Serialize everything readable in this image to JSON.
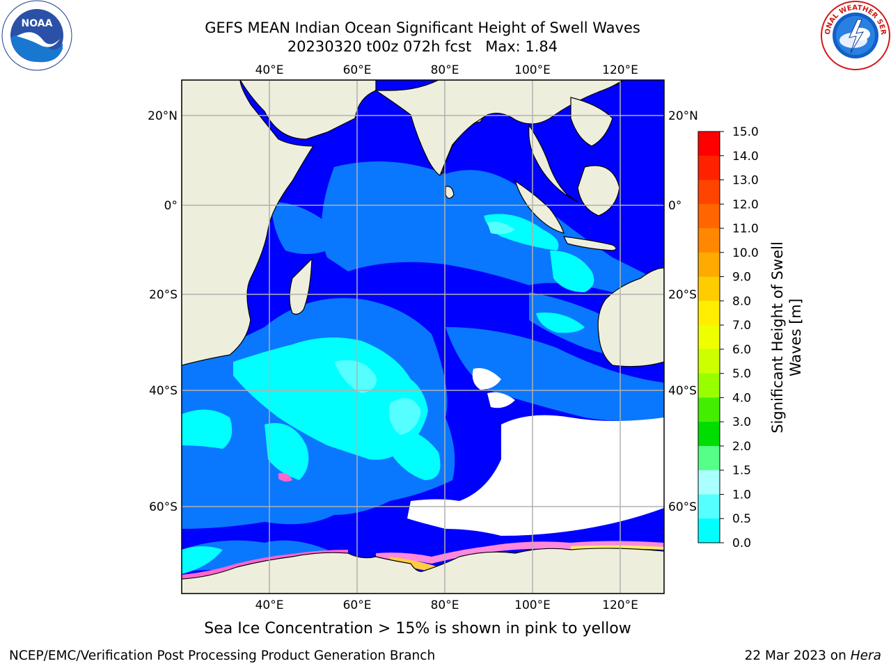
{
  "header": {
    "title_line1": "GEFS MEAN Indian Ocean Significant Height of Swell Waves",
    "title_line2": "20230320 t00z 072h fcst   Max: 1.84"
  },
  "logos": {
    "left": "NOAA",
    "right": "NATIONAL WEATHER SERVICE"
  },
  "map": {
    "lon_labels": [
      "40°E",
      "60°E",
      "80°E",
      "100°E",
      "120°E"
    ],
    "lat_labels_left": [
      "20°N",
      "0°",
      "20°S",
      "40°S",
      "60°S"
    ],
    "lat_labels_right": [
      "20°N",
      "0°",
      "20°S",
      "40°S",
      "60°S"
    ],
    "colors": {
      "land": "#eeeedc",
      "ocean_deep": "#0000ff",
      "ocean_mid": "#0a77ff",
      "ocean_light": "#00ffff",
      "ocean_pale": "#55ffff",
      "ice": "#ffffff",
      "grid": "#b0b0b0"
    }
  },
  "colorbar": {
    "label_line1": "Significant Height of Swell",
    "label_line2": "Waves [m]",
    "ticks": [
      "15.0",
      "14.0",
      "13.0",
      "12.0",
      "11.0",
      "10.0",
      "9.0",
      "8.0",
      "7.0",
      "6.0",
      "5.0",
      "4.0",
      "3.0",
      "2.0",
      "1.5",
      "1.0",
      "0.5",
      "0.0"
    ],
    "colors_top_to_bottom": [
      "#ff0000",
      "#ff2200",
      "#ff4400",
      "#ff6600",
      "#ff8800",
      "#ffaa00",
      "#ffcc00",
      "#ffee00",
      "#eeff00",
      "#ccff00",
      "#99ff00",
      "#44ee00",
      "#00dd00",
      "#55ff88",
      "#aaffff",
      "#55ffff",
      "#00ffff",
      "#0a77ff",
      "#0000ff"
    ]
  },
  "caption": "Sea Ice Concentration > 15% is shown in pink to yellow",
  "footer": {
    "left": "NCEP/EMC/Verification Post Processing Product Generation Branch",
    "right_date": "22 Mar 2023 on",
    "right_host": "Hera"
  }
}
